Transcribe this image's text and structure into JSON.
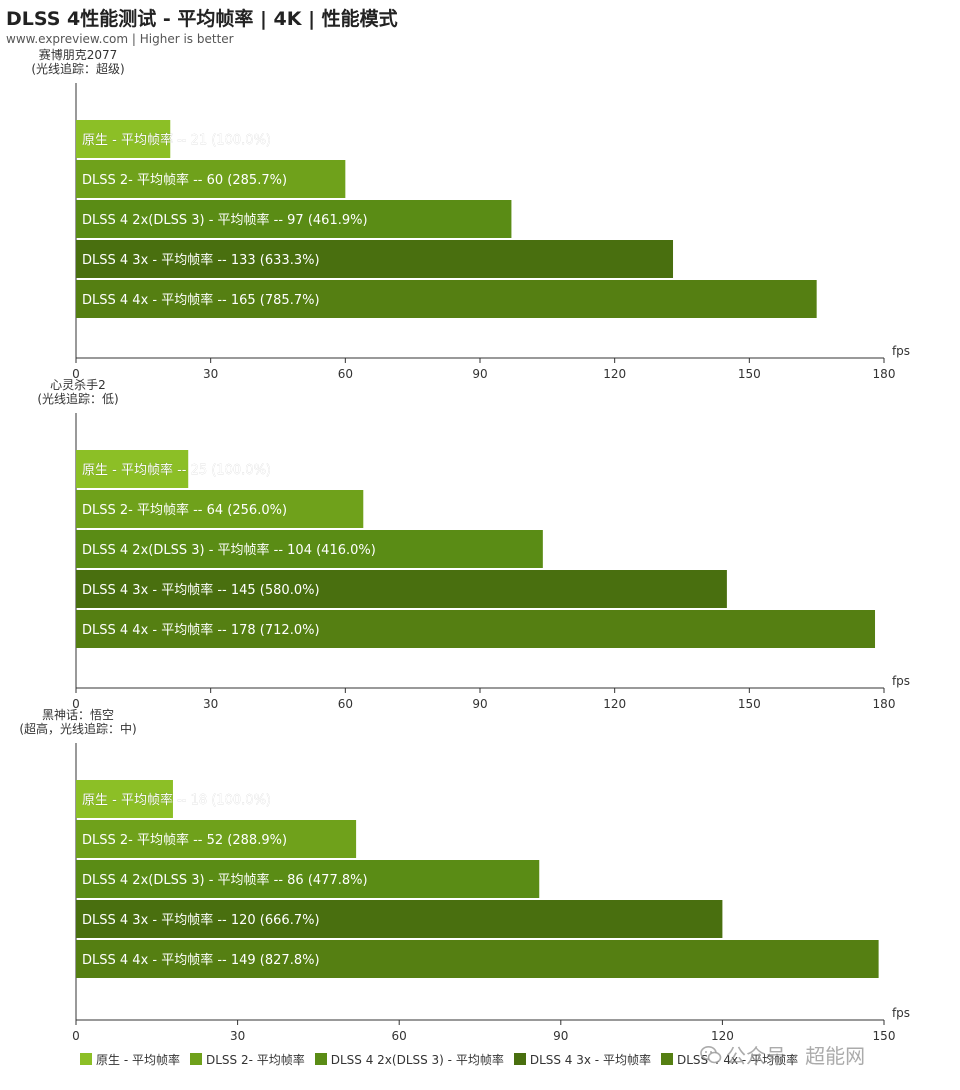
{
  "header": {
    "title": "DLSS 4性能测试 - 平均帧率 | 4K | 性能模式",
    "subtitle": "www.expreview.com | Higher is better"
  },
  "colors": [
    "#8cbf26",
    "#6fa11b",
    "#5a8c15",
    "#496f0f",
    "#557f12"
  ],
  "chart_data": [
    {
      "type": "bar",
      "orientation": "horizontal",
      "game": "赛博朋克2077",
      "setting": "(光线追踪：超级)",
      "xlabel": "fps",
      "xlim": [
        0,
        180
      ],
      "xticks": [
        "0",
        "30",
        "60",
        "90",
        "120",
        "150",
        "180"
      ],
      "bars": [
        {
          "name": "原生 - 平均帧率",
          "value": 21,
          "label": "原生 - 平均帧率  --  21 (100.0%)"
        },
        {
          "name": "DLSS 2- 平均帧率",
          "value": 60,
          "label": "DLSS 2- 平均帧率  --  60 (285.7%)"
        },
        {
          "name": "DLSS 4 2x(DLSS 3)  - 平均帧率",
          "value": 97,
          "label": "DLSS 4 2x(DLSS 3)  - 平均帧率  --  97 (461.9%)"
        },
        {
          "name": "DLSS 4 3x  - 平均帧率",
          "value": 133,
          "label": "DLSS 4 3x  - 平均帧率  --  133 (633.3%)"
        },
        {
          "name": "DLSS 4 4x  - 平均帧率",
          "value": 165,
          "label": "DLSS 4 4x  - 平均帧率  --  165 (785.7%)"
        }
      ]
    },
    {
      "type": "bar",
      "orientation": "horizontal",
      "game": "心灵杀手2",
      "setting": "(光线追踪：低)",
      "xlabel": "fps",
      "xlim": [
        0,
        180
      ],
      "xticks": [
        "0",
        "30",
        "60",
        "90",
        "120",
        "150",
        "180"
      ],
      "bars": [
        {
          "name": "原生 - 平均帧率",
          "value": 25,
          "label": "原生 - 平均帧率  --  25 (100.0%)"
        },
        {
          "name": "DLSS 2- 平均帧率",
          "value": 64,
          "label": "DLSS 2- 平均帧率  --  64 (256.0%)"
        },
        {
          "name": "DLSS 4 2x(DLSS 3)  - 平均帧率",
          "value": 104,
          "label": "DLSS 4 2x(DLSS 3)  - 平均帧率  --  104 (416.0%)"
        },
        {
          "name": "DLSS 4 3x  - 平均帧率",
          "value": 145,
          "label": "DLSS 4 3x  - 平均帧率  --  145 (580.0%)"
        },
        {
          "name": "DLSS 4 4x  - 平均帧率",
          "value": 178,
          "label": "DLSS 4 4x  - 平均帧率  --  178 (712.0%)"
        }
      ]
    },
    {
      "type": "bar",
      "orientation": "horizontal",
      "game": "黑神话：悟空",
      "setting": "(超高，光线追踪：中)",
      "xlabel": "fps",
      "xlim": [
        0,
        150
      ],
      "xticks": [
        "0",
        "30",
        "60",
        "90",
        "120",
        "150"
      ],
      "bars": [
        {
          "name": "原生 - 平均帧率",
          "value": 18,
          "label": "原生 - 平均帧率  --  18 (100.0%)"
        },
        {
          "name": "DLSS 2- 平均帧率",
          "value": 52,
          "label": "DLSS 2- 平均帧率  --  52 (288.9%)"
        },
        {
          "name": "DLSS 4 2x(DLSS 3)  - 平均帧率",
          "value": 86,
          "label": "DLSS 4 2x(DLSS 3)  - 平均帧率  --  86 (477.8%)"
        },
        {
          "name": "DLSS 4 3x  - 平均帧率",
          "value": 120,
          "label": "DLSS 4 3x  - 平均帧率  --  120 (666.7%)"
        },
        {
          "name": "DLSS 4 4x  - 平均帧率",
          "value": 149,
          "label": "DLSS 4 4x  - 平均帧率  --  149 (827.8%)"
        }
      ]
    }
  ],
  "legend": {
    "placement": "bottom",
    "items": [
      "原生 - 平均帧率",
      "DLSS 2- 平均帧率",
      "DLSS 4 2x(DLSS 3)  - 平均帧率",
      "DLSS 4 3x  - 平均帧率",
      "DLSS 4 4x  - 平均帧率"
    ]
  },
  "watermark": {
    "text": "公众号 · 超能网",
    "icon": "wechat-icon"
  }
}
